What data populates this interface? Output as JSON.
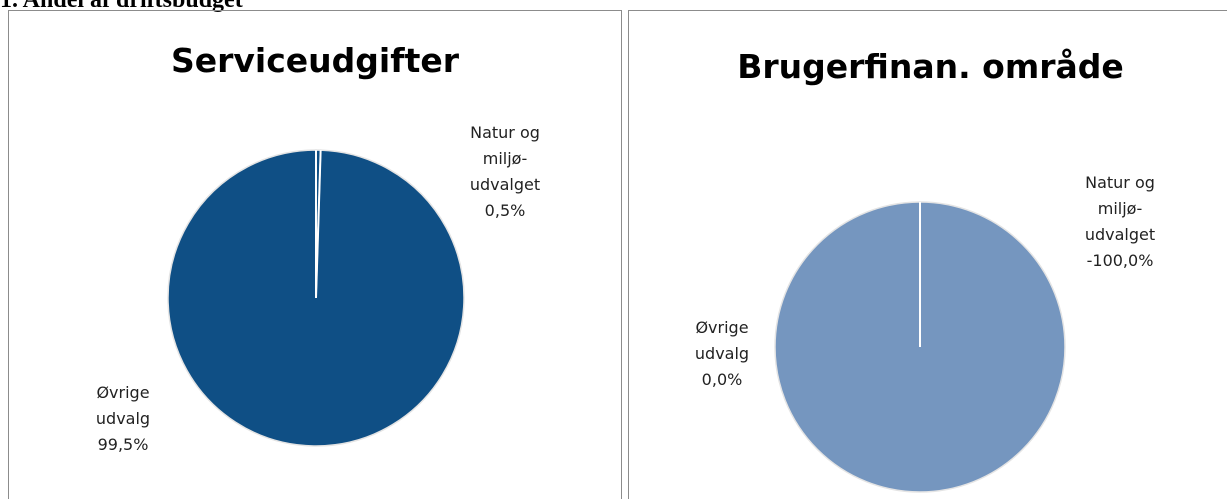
{
  "heading": "1. Andel af driftsbudget",
  "chart_data": [
    {
      "type": "pie",
      "title": "Serviceudgifter",
      "categories": [
        "Natur og miljø-udvalget",
        "Øvrige udvalg"
      ],
      "values": [
        0.5,
        99.5
      ],
      "value_labels": [
        "0,5%",
        "99,5%"
      ],
      "color": "#0f4f85"
    },
    {
      "type": "pie",
      "title": "Brugerfinan. område",
      "categories": [
        "Natur og miljø-udvalget",
        "Øvrige udvalg"
      ],
      "values": [
        -100.0,
        0.0
      ],
      "value_labels": [
        "-100,0%",
        "0,0%"
      ],
      "color": "#7596bf"
    }
  ]
}
